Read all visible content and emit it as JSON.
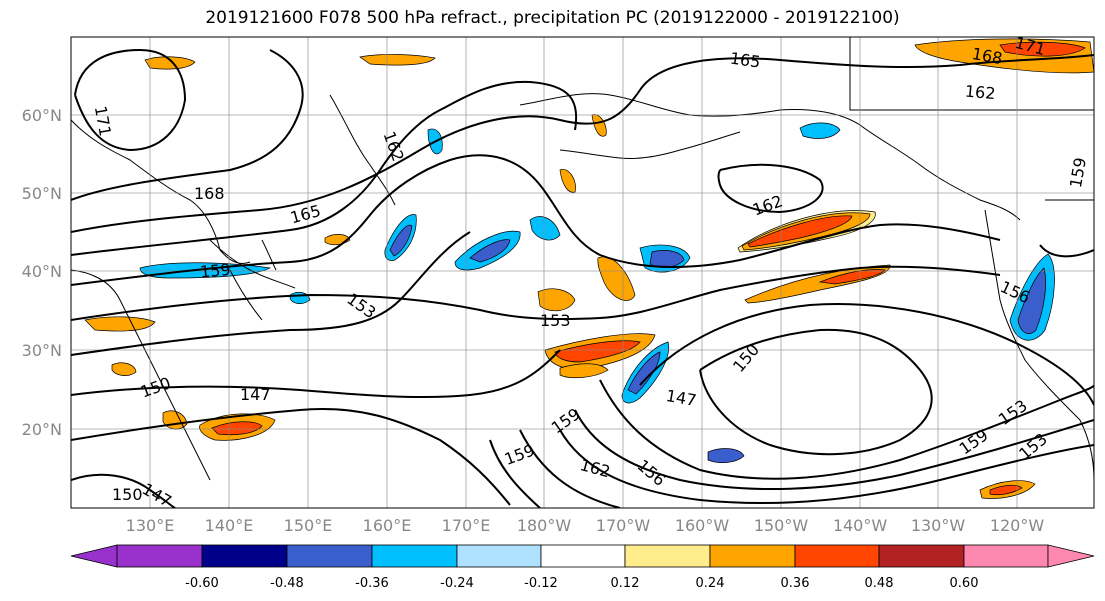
{
  "title": "2019121600 F078 500 hPa refract., precipitation PC (2019122000 - 2019122100)",
  "map": {
    "lat_labels": [
      "60°N",
      "50°N",
      "40°N",
      "30°N",
      "20°N"
    ],
    "lon_labels": [
      "130°E",
      "140°E",
      "150°E",
      "160°E",
      "170°E",
      "180°W",
      "170°W",
      "160°W",
      "150°W",
      "140°W",
      "130°W",
      "120°W"
    ],
    "contour_labels": [
      {
        "text": "165",
        "rot": 8
      },
      {
        "text": "168",
        "rot": 10
      },
      {
        "text": "171",
        "rot": 15
      },
      {
        "text": "162",
        "rot": 5
      },
      {
        "text": "171",
        "rot": 80
      },
      {
        "text": "162",
        "rot": 70
      },
      {
        "text": "168",
        "rot": 0
      },
      {
        "text": "165",
        "rot": -15
      },
      {
        "text": "159",
        "rot": -5
      },
      {
        "text": "153",
        "rot": 35
      },
      {
        "text": "162",
        "rot": -20
      },
      {
        "text": "159",
        "rot": -80
      },
      {
        "text": "156",
        "rot": 25
      },
      {
        "text": "153",
        "rot": 0
      },
      {
        "text": "150",
        "rot": -50
      },
      {
        "text": "150",
        "rot": -20
      },
      {
        "text": "147",
        "rot": 0
      },
      {
        "text": "147",
        "rot": 10
      },
      {
        "text": "159",
        "rot": -35
      },
      {
        "text": "159",
        "rot": -20
      },
      {
        "text": "162",
        "rot": 15
      },
      {
        "text": "156",
        "rot": 40
      },
      {
        "text": "159",
        "rot": -35
      },
      {
        "text": "153",
        "rot": -35
      },
      {
        "text": "153",
        "rot": -40
      },
      {
        "text": "150",
        "rot": 0
      },
      {
        "text": "147",
        "rot": 30
      }
    ]
  },
  "colorbar": {
    "colors": [
      "#9932CC",
      "#00008B",
      "#3A5FCD",
      "#00BFFF",
      "#B0E2FF",
      "#FFFFFF",
      "#FFEC8B",
      "#FFA500",
      "#FF4500",
      "#B22222",
      "#FF88B0"
    ],
    "tick_labels": [
      "-0.60",
      "-0.48",
      "-0.36",
      "-0.24",
      "-0.12",
      "0.12",
      "0.24",
      "0.36",
      "0.48",
      "0.60"
    ]
  }
}
